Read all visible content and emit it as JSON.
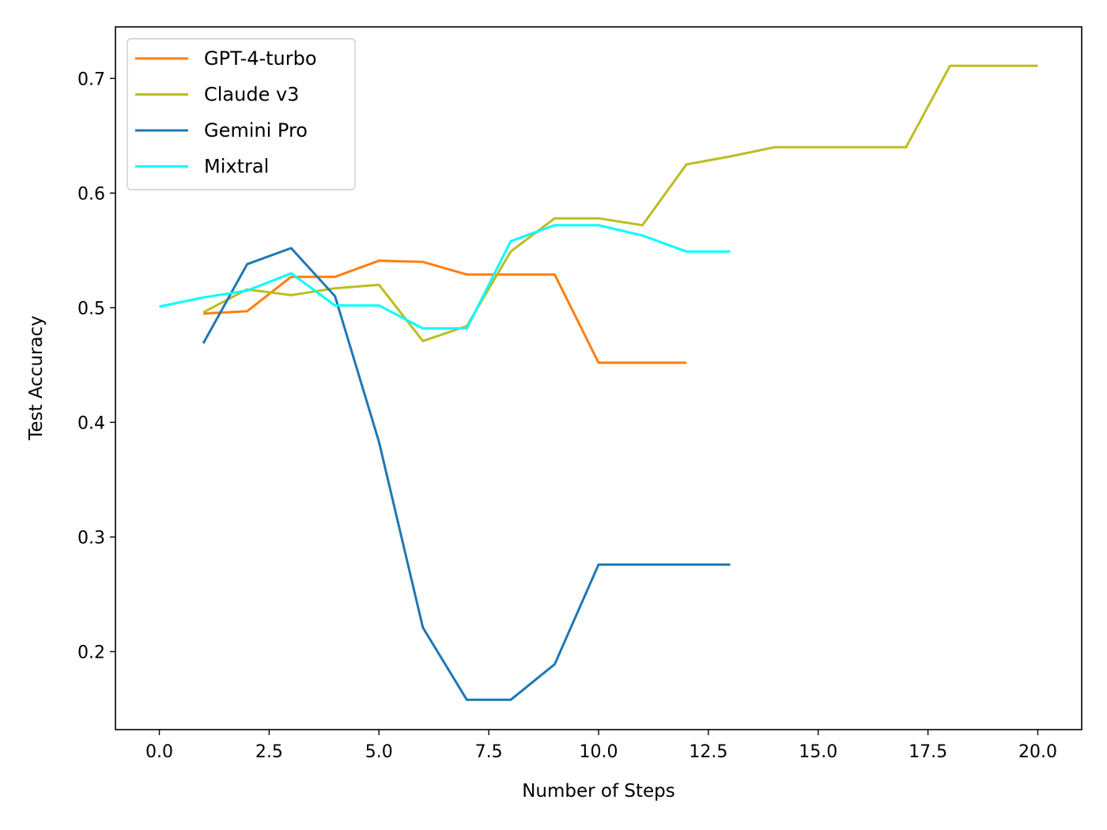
{
  "chart_data": {
    "type": "line",
    "title": "",
    "xlabel": "Number of Steps",
    "ylabel": "Test Accuracy",
    "xlim": [
      -1,
      21
    ],
    "ylim": [
      0.132,
      0.745
    ],
    "xticks": [
      0.0,
      2.5,
      5.0,
      7.5,
      10.0,
      12.5,
      15.0,
      17.5,
      20.0
    ],
    "xtick_labels": [
      "0.0",
      "2.5",
      "5.0",
      "7.5",
      "10.0",
      "12.5",
      "15.0",
      "17.5",
      "20.0"
    ],
    "yticks": [
      0.2,
      0.3,
      0.4,
      0.5,
      0.6,
      0.7
    ],
    "ytick_labels": [
      "0.2",
      "0.3",
      "0.4",
      "0.5",
      "0.6",
      "0.7"
    ],
    "grid": false,
    "legend_position": "upper-left",
    "series": [
      {
        "name": "GPT-4-turbo",
        "color": "#ff7f0e",
        "x": [
          1,
          2,
          3,
          4,
          5,
          6,
          7,
          8,
          9,
          10,
          11,
          12
        ],
        "y": [
          0.495,
          0.497,
          0.527,
          0.527,
          0.541,
          0.54,
          0.529,
          0.529,
          0.529,
          0.452,
          0.452,
          0.452
        ]
      },
      {
        "name": "Claude v3",
        "color": "#bcbd22",
        "x": [
          1,
          2,
          3,
          4,
          5,
          6,
          7,
          8,
          9,
          10,
          11,
          12,
          13,
          14,
          15,
          16,
          17,
          18,
          19,
          20
        ],
        "y": [
          0.496,
          0.516,
          0.511,
          0.517,
          0.52,
          0.471,
          0.484,
          0.549,
          0.578,
          0.578,
          0.572,
          0.625,
          0.632,
          0.64,
          0.64,
          0.64,
          0.64,
          0.711,
          0.711,
          0.711
        ]
      },
      {
        "name": "Gemini Pro",
        "color": "#1f77b4",
        "x": [
          1,
          2,
          3,
          4,
          5,
          6,
          7,
          8,
          9,
          10,
          11,
          12,
          13
        ],
        "y": [
          0.469,
          0.538,
          0.552,
          0.51,
          0.383,
          0.221,
          0.158,
          0.158,
          0.189,
          0.276,
          0.276,
          0.276,
          0.276
        ]
      },
      {
        "name": "Mixtral",
        "color": "#00ffff",
        "x": [
          0,
          1,
          2,
          3,
          4,
          5,
          6,
          7,
          8,
          9,
          10,
          11,
          12,
          13
        ],
        "y": [
          0.501,
          0.509,
          0.515,
          0.53,
          0.502,
          0.502,
          0.482,
          0.482,
          0.558,
          0.572,
          0.572,
          0.563,
          0.549,
          0.549
        ]
      }
    ]
  }
}
